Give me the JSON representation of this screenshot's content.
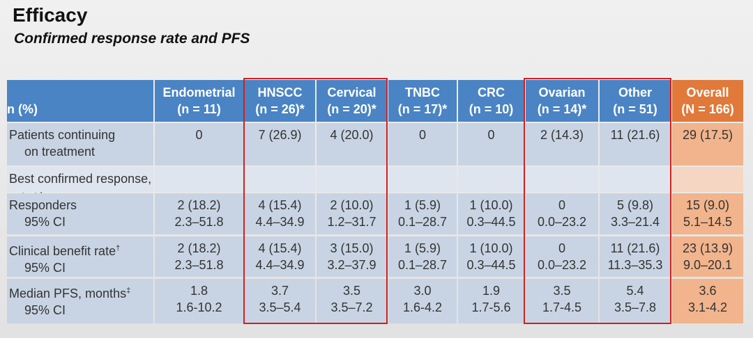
{
  "header": {
    "title": "Efficacy",
    "subtitle": "Confirmed response rate and PFS"
  },
  "table": {
    "corner": "n (%)",
    "columns": [
      {
        "name": "Endometrial",
        "n": "(n = 11)"
      },
      {
        "name": "HNSCC",
        "n": "(n = 26)*"
      },
      {
        "name": "Cervical",
        "n": "(n = 20)*"
      },
      {
        "name": "TNBC",
        "n": "(n = 17)*"
      },
      {
        "name": "CRC",
        "n": "(n = 10)"
      },
      {
        "name": "Ovarian",
        "n": "(n = 14)*"
      },
      {
        "name": "Other",
        "n": "(n = 51)"
      },
      {
        "name": "Overall",
        "n": "(N = 166)"
      }
    ],
    "rows": [
      {
        "label": [
          "Patients continuing",
          "on treatment"
        ],
        "cells": [
          [
            "0"
          ],
          [
            "7 (26.9)"
          ],
          [
            "4 (20.0)"
          ],
          [
            "0"
          ],
          [
            "0"
          ],
          [
            "2 (14.3)"
          ],
          [
            "11 (21.6)"
          ],
          [
            "29 (17.5)"
          ]
        ]
      },
      {
        "label": [
          "Best confirmed response, n (%)"
        ],
        "sup": "†",
        "cells": []
      },
      {
        "label": [
          "Responders",
          "95% CI"
        ],
        "cells": [
          [
            "2 (18.2)",
            "2.3–51.8"
          ],
          [
            "4 (15.4)",
            "4.4–34.9"
          ],
          [
            "2 (10.0)",
            "1.2–31.7"
          ],
          [
            "1 (5.9)",
            "0.1–28.7"
          ],
          [
            "1 (10.0)",
            "0.3–44.5"
          ],
          [
            "0",
            "0.0–23.2"
          ],
          [
            "5 (9.8)",
            "3.3–21.4"
          ],
          [
            "15 (9.0)",
            "5.1–14.5"
          ]
        ]
      },
      {
        "label": [
          "Clinical benefit rate",
          "95% CI"
        ],
        "sup": "†",
        "cells": [
          [
            "2 (18.2)",
            "2.3–51.8"
          ],
          [
            "4 (15.4)",
            "4.4–34.9"
          ],
          [
            "3 (15.0)",
            "3.2–37.9"
          ],
          [
            "1 (5.9)",
            "0.1–28.7"
          ],
          [
            "1 (10.0)",
            "0.3–44.5"
          ],
          [
            "0",
            "0.0–23.2"
          ],
          [
            "11 (21.6)",
            "11.3–35.3"
          ],
          [
            "23 (13.9)",
            "9.0–20.1"
          ]
        ]
      },
      {
        "label": [
          "Median PFS, months",
          "95% CI"
        ],
        "sup": "‡",
        "cells": [
          [
            "1.8",
            "1.6-10.2"
          ],
          [
            "3.7",
            "3.5–5.4"
          ],
          [
            "3.5",
            "3.5–7.2"
          ],
          [
            "3.0",
            "1.6-4.2"
          ],
          [
            "1.9",
            "1.7-5.6"
          ],
          [
            "3.5",
            "1.7-4.5"
          ],
          [
            "5.4",
            "3.5–7.8"
          ],
          [
            "3.6",
            "3.1-4.2"
          ]
        ]
      }
    ]
  }
}
